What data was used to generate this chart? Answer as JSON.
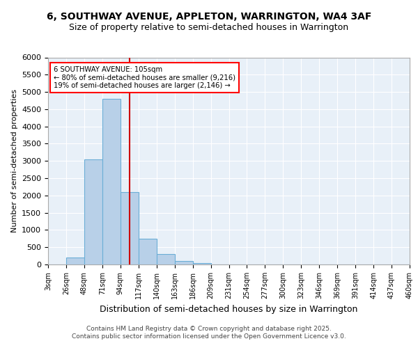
{
  "title1": "6, SOUTHWAY AVENUE, APPLETON, WARRINGTON, WA4 3AF",
  "title2": "Size of property relative to semi-detached houses in Warrington",
  "xlabel": "Distribution of semi-detached houses by size in Warrington",
  "ylabel": "Number of semi-detached properties",
  "bin_labels": [
    "3sqm",
    "26sqm",
    "48sqm",
    "71sqm",
    "94sqm",
    "117sqm",
    "140sqm",
    "163sqm",
    "186sqm",
    "209sqm",
    "231sqm",
    "254sqm",
    "277sqm",
    "300sqm",
    "323sqm",
    "346sqm",
    "369sqm",
    "391sqm",
    "414sqm",
    "437sqm",
    "460sqm"
  ],
  "bar_heights": [
    0,
    200,
    3050,
    4800,
    2100,
    750,
    300,
    100,
    50,
    10,
    0,
    0,
    0,
    0,
    0,
    0,
    0,
    0,
    0,
    0
  ],
  "bar_color": "#b8d0e8",
  "bar_edge_color": "#6baed6",
  "vline_index": 4.5,
  "vline_color": "#cc0000",
  "annotation_text": "6 SOUTHWAY AVENUE: 105sqm\n← 80% of semi-detached houses are smaller (9,216)\n19% of semi-detached houses are larger (2,146) →",
  "annotation_box_color": "white",
  "annotation_box_edge_color": "red",
  "ylim": [
    0,
    6000
  ],
  "yticks": [
    0,
    500,
    1000,
    1500,
    2000,
    2500,
    3000,
    3500,
    4000,
    4500,
    5000,
    5500,
    6000
  ],
  "footer_text": "Contains HM Land Registry data © Crown copyright and database right 2025.\nContains public sector information licensed under the Open Government Licence v3.0.",
  "bg_color": "#e8f0f8",
  "grid_color": "white",
  "fig_width": 6.0,
  "fig_height": 5.0
}
